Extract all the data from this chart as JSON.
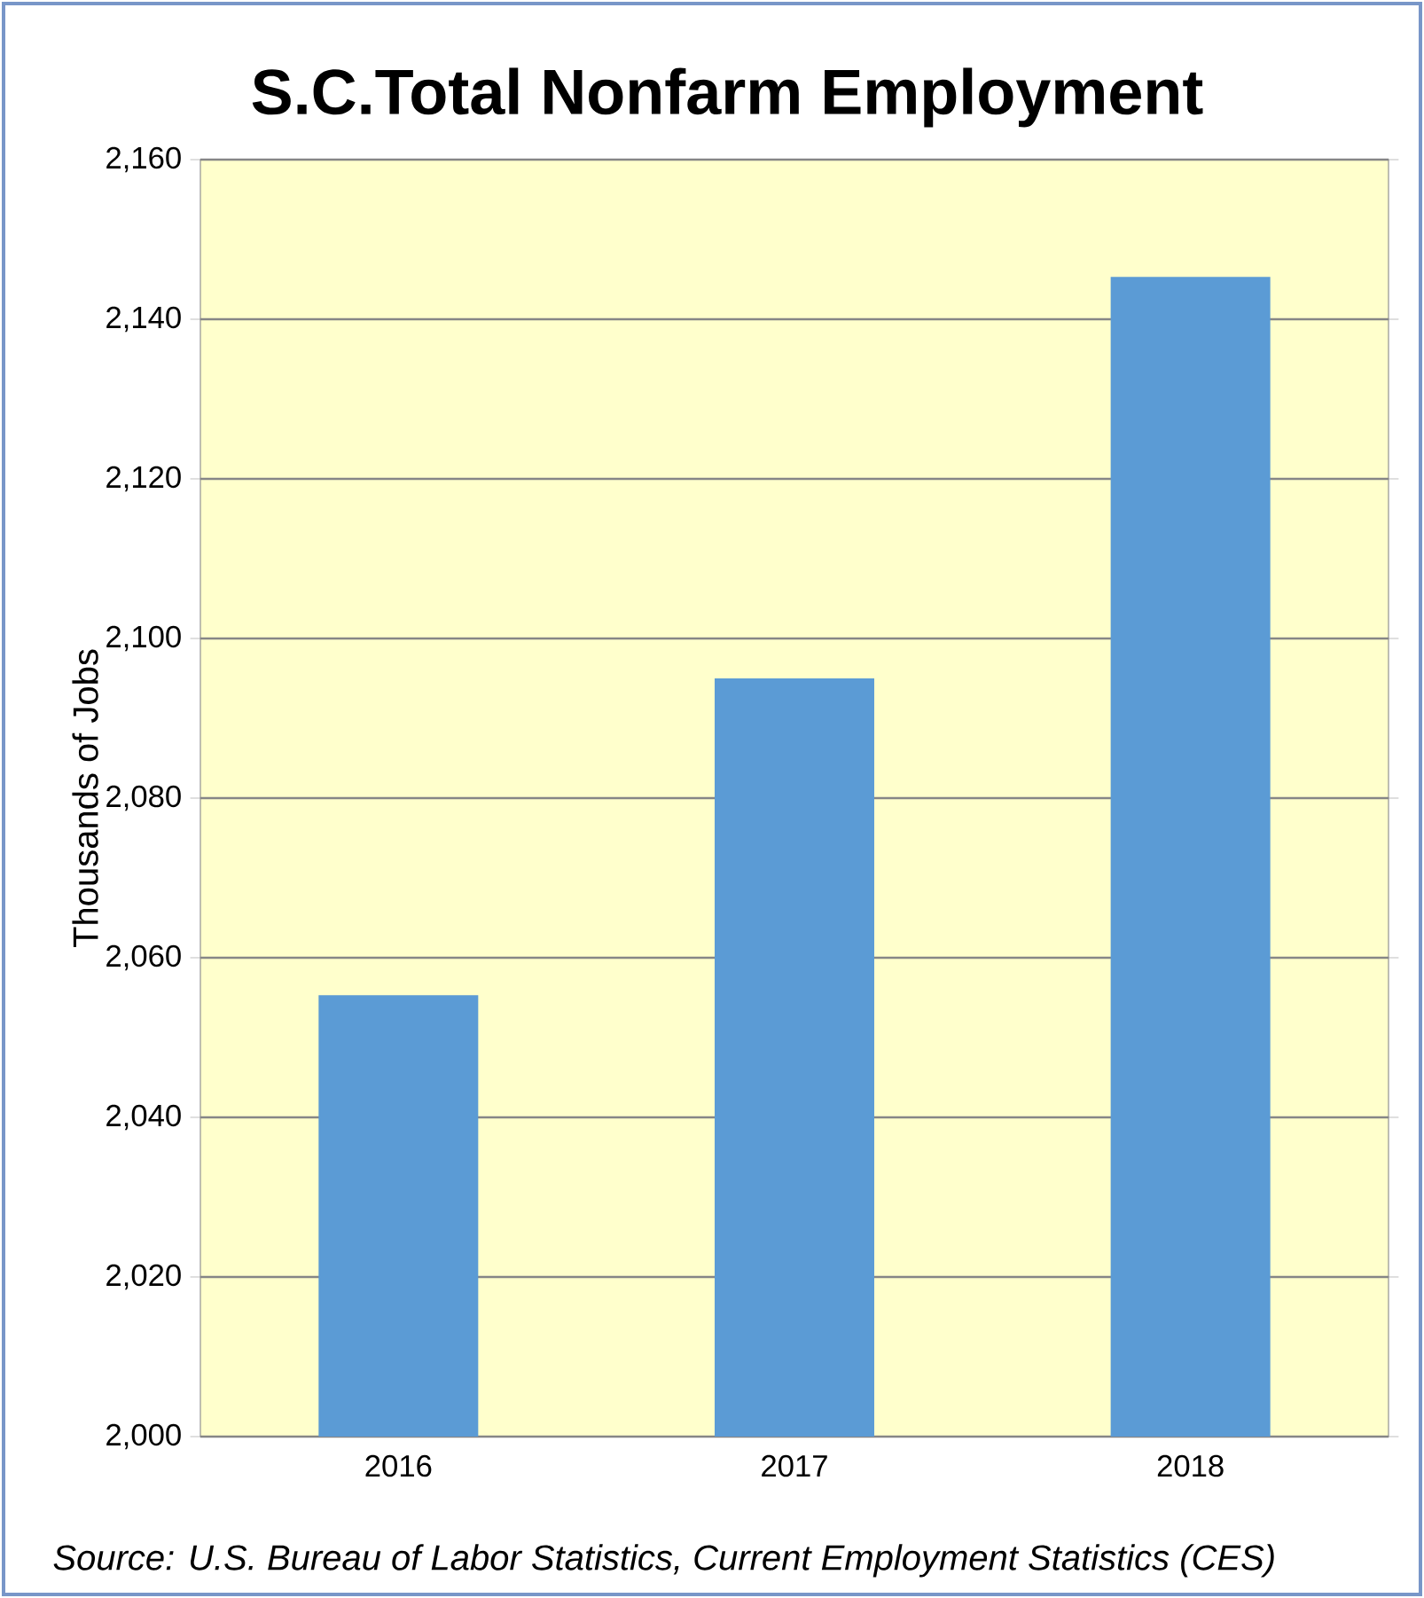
{
  "chart_data": {
    "type": "bar",
    "title": "S.C.Total Nonfarm Employment",
    "ylabel": "Thousands of Jobs",
    "categories": [
      "2016",
      "2017",
      "2018"
    ],
    "series": [
      {
        "color": "#5b9bd5",
        "values": [
          2055.3,
          2095,
          2145.3
        ]
      }
    ],
    "ylim": [
      2000,
      2160
    ],
    "yticks": [
      {
        "value": 2000,
        "label": "2,000"
      },
      {
        "value": 2020,
        "label": "2,020"
      },
      {
        "value": 2040,
        "label": "2,040"
      },
      {
        "value": 2060,
        "label": "2,060"
      },
      {
        "value": 2080,
        "label": "2,080"
      },
      {
        "value": 2100,
        "label": "2,100"
      },
      {
        "value": 2120,
        "label": "2,120"
      },
      {
        "value": 2140,
        "label": "2,140"
      },
      {
        "value": 2160,
        "label": "2,160"
      }
    ],
    "grid": "y",
    "annotations": [
      "Source: U.S. Bureau of Labor Statistics, Current Employment Statistics (CES)"
    ]
  }
}
